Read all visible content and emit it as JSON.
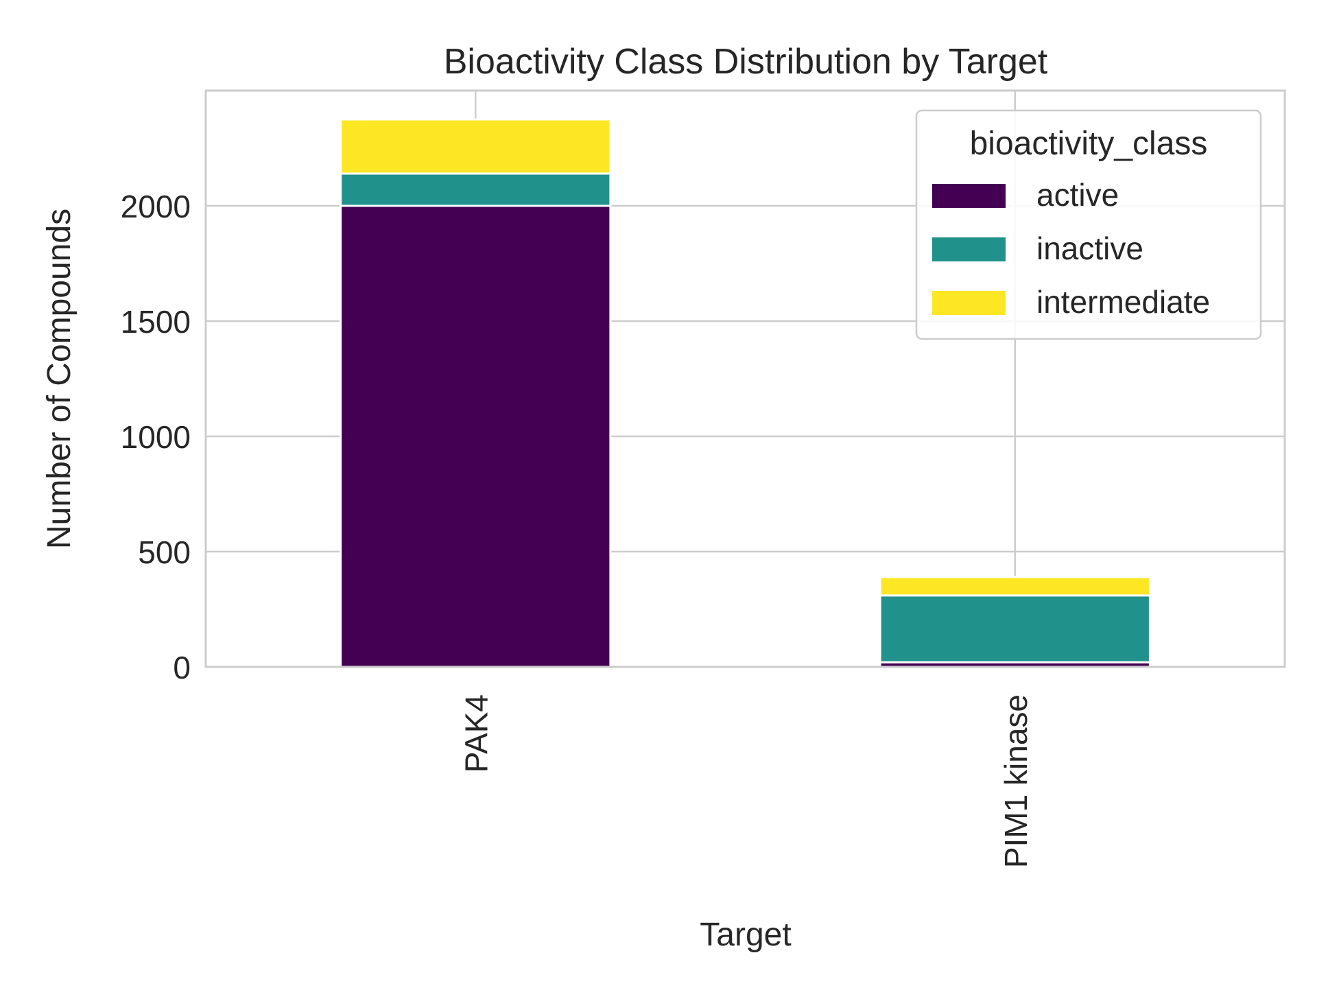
{
  "chart_data": {
    "type": "bar",
    "stacked": true,
    "title": "Bioactivity Class Distribution by Target",
    "xlabel": "Target",
    "ylabel": "Number of Compounds",
    "categories": [
      "PAK4",
      "PIM1 kinase"
    ],
    "series": [
      {
        "name": "active",
        "color": "#440154",
        "values": [
          2000,
          20
        ]
      },
      {
        "name": "inactive",
        "color": "#21918c",
        "values": [
          140,
          290
        ]
      },
      {
        "name": "intermediate",
        "color": "#fde725",
        "values": [
          235,
          80
        ]
      }
    ],
    "ylim": [
      0,
      2500
    ],
    "yticks": [
      0,
      500,
      1000,
      1500,
      2000
    ],
    "ytick_labels": [
      "0",
      "500",
      "1000",
      "1500",
      "2000"
    ],
    "grid": true,
    "legend": {
      "title": "bioactivity_class",
      "position": "top-right"
    }
  }
}
